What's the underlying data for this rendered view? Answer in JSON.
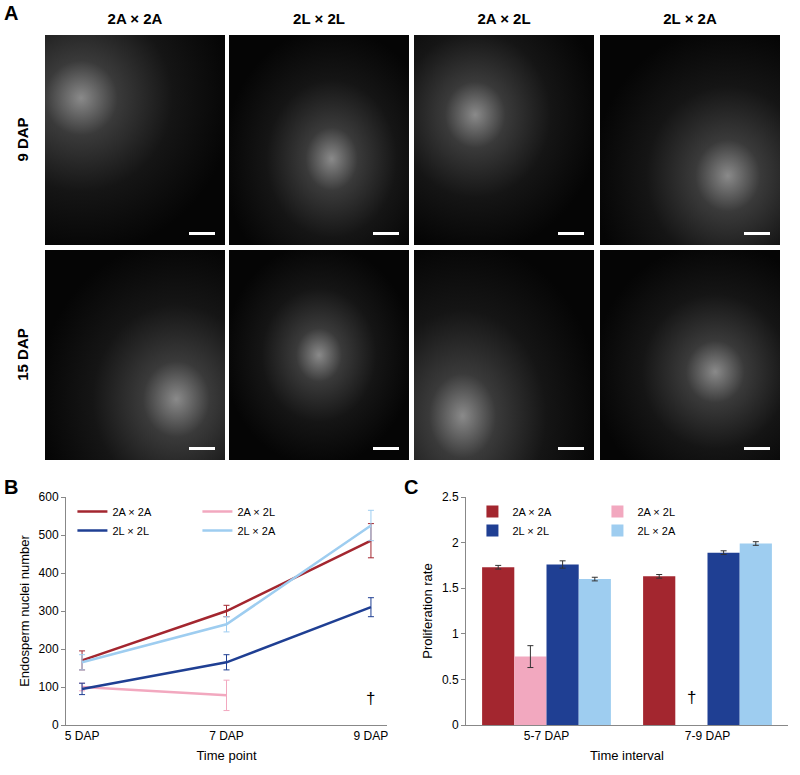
{
  "panel_a": {
    "label": "A",
    "columns": [
      "2A × 2A",
      "2L × 2L",
      "2A × 2L",
      "2L × 2A"
    ],
    "rows": [
      "9 DAP",
      "15 DAP"
    ]
  },
  "chart_data": [
    {
      "label": "B",
      "type": "line",
      "x_label": "Time point",
      "y_label": "Endosperm nuclei number",
      "categories": [
        "5 DAP",
        "7 DAP",
        "9 DAP"
      ],
      "ylim": [
        0,
        600
      ],
      "yticks": [
        0,
        100,
        200,
        300,
        400,
        500,
        600
      ],
      "grid": false,
      "legend": "upper left",
      "series": [
        {
          "name": "2A × 2A",
          "color": "#a3262f",
          "values": [
            170,
            300,
            485
          ],
          "errors": [
            25,
            15,
            45
          ]
        },
        {
          "name": "2A × 2L",
          "color": "#f2a8bf",
          "values": [
            100,
            78,
            null
          ],
          "errors": [
            10,
            40,
            null
          ]
        },
        {
          "name": "2L × 2L",
          "color": "#1f3f93",
          "values": [
            95,
            165,
            310
          ],
          "errors": [
            15,
            20,
            25
          ]
        },
        {
          "name": "2L × 2A",
          "color": "#9ecdf0",
          "values": [
            165,
            265,
            525
          ],
          "errors": [
            20,
            20,
            40
          ]
        }
      ],
      "annotations": [
        {
          "text": "†",
          "x": "9 DAP",
          "y": 70
        }
      ]
    },
    {
      "label": "C",
      "type": "bar",
      "x_label": "Time interval",
      "y_label": "Proliferation rate",
      "categories": [
        "5-7 DAP",
        "7-9 DAP"
      ],
      "ylim": [
        0,
        2.5
      ],
      "yticks": [
        0,
        0.5,
        1,
        1.5,
        2,
        2.5
      ],
      "grid": false,
      "legend": "upper left",
      "series": [
        {
          "name": "2A × 2A",
          "color": "#a3262f",
          "values": [
            1.73,
            1.63
          ],
          "errors": [
            0.02,
            0.02
          ]
        },
        {
          "name": "2A × 2L",
          "color": "#f2a8bf",
          "values": [
            0.75,
            null
          ],
          "errors": [
            0.12,
            null
          ]
        },
        {
          "name": "2L × 2L",
          "color": "#1f3f93",
          "values": [
            1.76,
            1.89
          ],
          "errors": [
            0.04,
            0.02
          ]
        },
        {
          "name": "2L × 2A",
          "color": "#9ecdf0",
          "values": [
            1.6,
            1.99
          ],
          "errors": [
            0.02,
            0.02
          ]
        }
      ],
      "annotations": [
        {
          "text": "†",
          "x": "7-9 DAP",
          "series": "2A × 2L",
          "y": 0.3
        }
      ]
    }
  ]
}
